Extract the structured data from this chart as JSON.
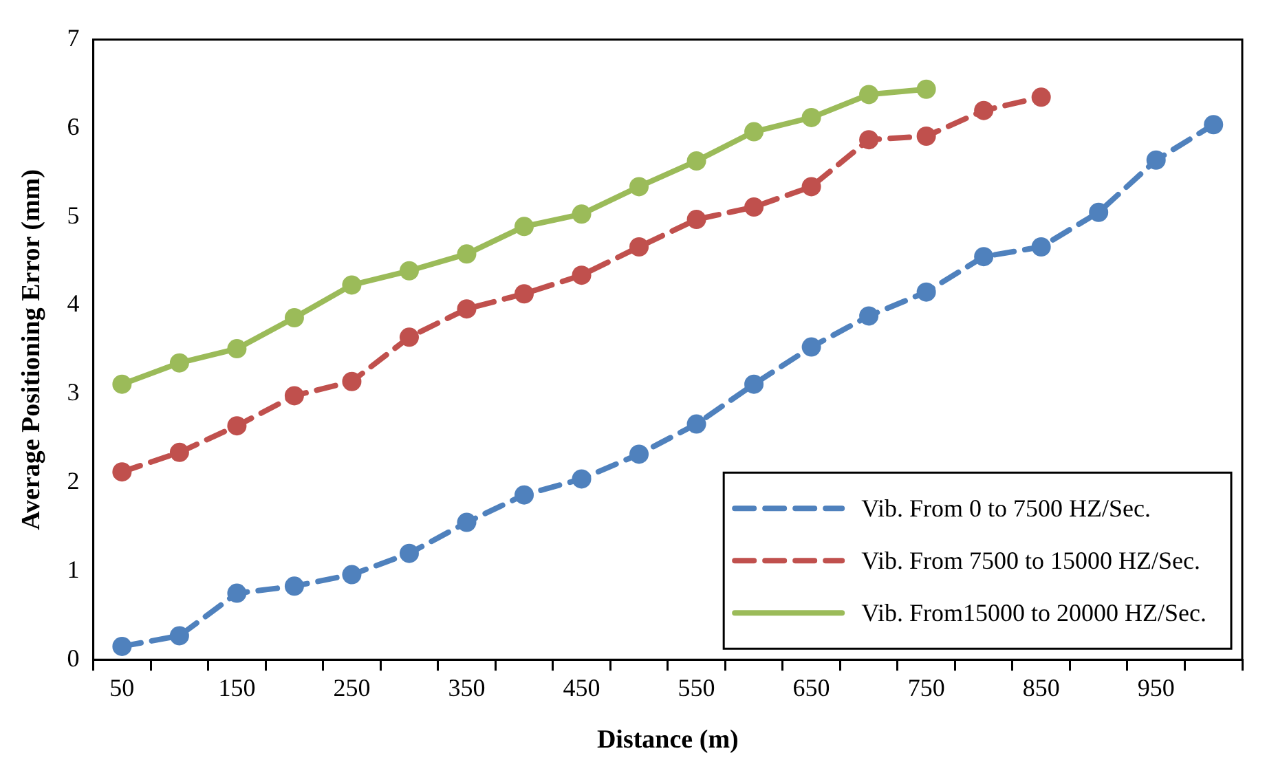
{
  "chart_data": {
    "type": "line",
    "xlabel": "Distance (m)",
    "ylabel": "Average Positioning Error (mm)",
    "categories": [
      "50",
      null,
      "150",
      null,
      "250",
      null,
      "350",
      null,
      "450",
      null,
      "550",
      null,
      "650",
      null,
      "750",
      null,
      "850",
      null,
      "950",
      null
    ],
    "series": [
      {
        "name": "Vib. From 0 to 7500 HZ/Sec.",
        "color": "#4f81bd",
        "line_style": "dashed",
        "values": [
          0.15,
          0.27,
          0.75,
          0.83,
          0.96,
          1.2,
          1.55,
          1.86,
          2.04,
          2.32,
          2.66,
          3.11,
          3.53,
          3.88,
          4.15,
          4.55,
          4.66,
          5.05,
          5.64,
          6.04
        ]
      },
      {
        "name": "Vib. From 7500 to 15000 HZ/Sec.",
        "color": "#c0504d",
        "line_style": "dashed",
        "values": [
          2.12,
          2.34,
          2.64,
          2.98,
          3.14,
          3.64,
          3.96,
          4.13,
          4.34,
          4.66,
          4.97,
          5.11,
          5.34,
          5.87,
          5.91,
          6.2,
          6.35,
          null,
          null,
          null
        ]
      },
      {
        "name": "Vib. From15000 to 20000 HZ/Sec.",
        "color": "#9bbb59",
        "line_style": "solid",
        "values": [
          3.11,
          3.35,
          3.51,
          3.86,
          4.23,
          4.39,
          4.58,
          4.89,
          5.03,
          5.34,
          5.63,
          5.96,
          6.12,
          6.38,
          6.44,
          null,
          null,
          null,
          null,
          null
        ]
      }
    ],
    "ylim": [
      0,
      7
    ],
    "yticks": [
      0,
      1,
      2,
      3,
      4,
      5,
      6,
      7
    ],
    "grid": false,
    "legend": "bottom right",
    "marker": "circle"
  }
}
